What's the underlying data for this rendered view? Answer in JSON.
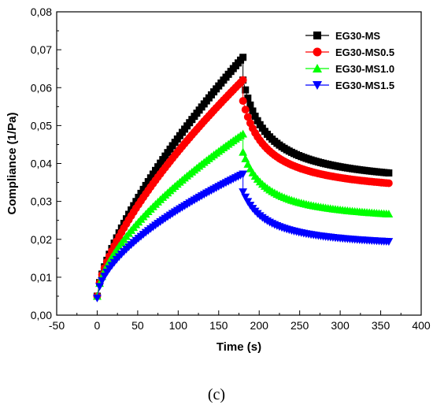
{
  "chart_data": {
    "type": "line",
    "title": "",
    "xlabel": "Time (s)",
    "ylabel": "Compliance (1/Pa)",
    "xlim": [
      -50,
      400
    ],
    "ylim": [
      0,
      0.08
    ],
    "x_ticks": [
      "-50",
      "0",
      "50",
      "100",
      "150",
      "200",
      "250",
      "300",
      "350",
      "400"
    ],
    "y_ticks": [
      "0,00",
      "0,01",
      "0,02",
      "0,03",
      "0,04",
      "0,05",
      "0,06",
      "0,07",
      "0,08"
    ],
    "legend_position": "top-right",
    "grid": false,
    "series": [
      {
        "name": "EG30-MS",
        "color": "#000000",
        "marker": "square",
        "creep": {
          "t_end": 180,
          "start": 0.005,
          "end": 0.068,
          "exponent": 0.7
        },
        "recovery": {
          "t_start": 180,
          "t_end": 360,
          "start": 0.062,
          "end": 0.0375
        }
      },
      {
        "name": "EG30-MS0.5",
        "color": "#ff0000",
        "marker": "circle",
        "creep": {
          "t_end": 180,
          "start": 0.005,
          "end": 0.062,
          "exponent": 0.68
        },
        "recovery": {
          "t_start": 180,
          "t_end": 360,
          "start": 0.0565,
          "end": 0.0348
        }
      },
      {
        "name": "EG30-MS1.0",
        "color": "#00ff00",
        "marker": "triangle-up",
        "creep": {
          "t_end": 180,
          "start": 0.005,
          "end": 0.0478,
          "exponent": 0.62
        },
        "recovery": {
          "t_start": 180,
          "t_end": 360,
          "start": 0.043,
          "end": 0.0267
        }
      },
      {
        "name": "EG30-MS1.5",
        "color": "#0000ff",
        "marker": "triangle-down",
        "creep": {
          "t_end": 180,
          "start": 0.0045,
          "end": 0.0372,
          "exponent": 0.58
        },
        "recovery": {
          "t_start": 180,
          "t_end": 360,
          "start": 0.0325,
          "end": 0.0194
        }
      }
    ]
  },
  "caption": "(c)"
}
